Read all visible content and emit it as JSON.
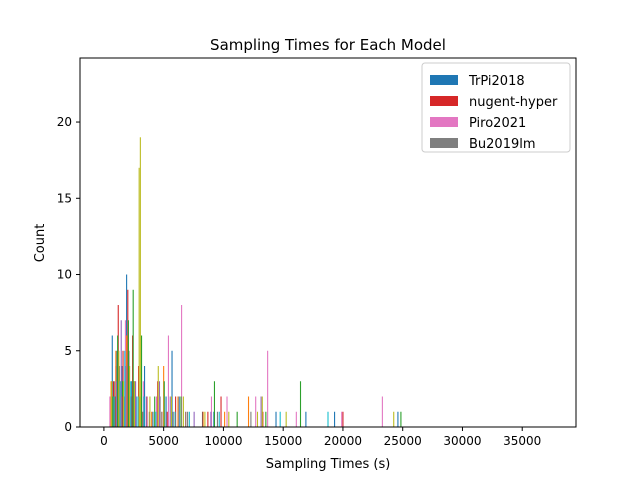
{
  "chart_data": {
    "type": "bar",
    "title": "Sampling Times for Each Model",
    "xlabel": "Sampling Times (s)",
    "ylabel": "Count",
    "xlim": [
      -2000,
      39500
    ],
    "ylim": [
      0,
      24.2
    ],
    "xticks": [
      0,
      5000,
      10000,
      15000,
      20000,
      25000,
      30000,
      35000
    ],
    "yticks": [
      0,
      5,
      10,
      15,
      20
    ],
    "grid": false,
    "legend_position": "top-right",
    "colors": {
      "TrPi2018": "#1f77b4",
      "nugent-hyper": "#d62728",
      "Piro2021": "#e377c2",
      "Bu2019lm": "#7f7f7f",
      "extra_orange": "#ff7f0e",
      "extra_green": "#2ca02c",
      "extra_purple": "#9467bd",
      "extra_olive": "#bcbd22",
      "extra_cyan": "#17becf",
      "extra_brown": "#8c564b"
    },
    "legend": [
      "TrPi2018",
      "nugent-hyper",
      "Piro2021",
      "Bu2019lm"
    ],
    "series": [
      {
        "name": "TrPi2018",
        "color": "#1f77b4",
        "x": [
          700,
          1100,
          1500,
          1900,
          2300,
          2700,
          3400,
          4100,
          5200,
          5700,
          6300,
          9200,
          14400,
          16900,
          19300,
          24600
        ],
        "y": [
          6,
          5,
          4,
          10,
          3,
          2,
          4,
          1,
          2,
          5,
          2,
          1,
          1,
          1,
          1,
          1
        ]
      },
      {
        "name": "nugent-hyper",
        "color": "#d62728",
        "x": [
          800,
          1200,
          1600,
          2000,
          2400,
          2900,
          3600,
          4500,
          5300,
          6000,
          8700,
          9800,
          13300,
          20000
        ],
        "y": [
          3,
          8,
          5,
          9,
          6,
          4,
          2,
          3,
          1,
          2,
          1,
          2,
          1,
          1
        ]
      },
      {
        "name": "Piro2021",
        "color": "#e377c2",
        "x": [
          500,
          1000,
          1400,
          1800,
          2200,
          2600,
          3300,
          4400,
          5400,
          6500,
          9000,
          10300,
          12700,
          13700,
          16100,
          19900,
          23300
        ],
        "y": [
          2,
          4,
          3,
          7,
          2,
          2,
          3,
          2,
          6,
          8,
          2,
          2,
          2,
          5,
          1,
          1,
          2
        ]
      },
      {
        "name": "Bu2019lm",
        "color": "#7f7f7f",
        "x": [
          900,
          1300,
          1700,
          2100,
          2500,
          3100,
          3800,
          4700,
          5800,
          7000,
          9500,
          12300
        ],
        "y": [
          3,
          4,
          2,
          5,
          3,
          2,
          1,
          2,
          1,
          1,
          1,
          1
        ]
      },
      {
        "color": "#ff7f0e",
        "x": [
          600,
          1000,
          1500,
          1900,
          2600,
          3000,
          4000,
          5000,
          6200,
          8300,
          10100,
          12100
        ],
        "y": [
          3,
          5,
          2,
          6,
          3,
          2,
          1,
          4,
          2,
          1,
          1,
          2
        ]
      },
      {
        "color": "#2ca02c",
        "x": [
          750,
          1150,
          1550,
          2050,
          2450,
          3150,
          4250,
          5050,
          6450,
          9250,
          11150,
          13550,
          16450,
          24850
        ],
        "y": [
          2,
          6,
          3,
          7,
          9,
          6,
          2,
          3,
          2,
          3,
          1,
          1,
          3,
          1
        ]
      },
      {
        "color": "#9467bd",
        "x": [
          1050,
          1450,
          1850,
          2650,
          3550,
          4650,
          5550,
          7550,
          8950,
          13150
        ],
        "y": [
          3,
          7,
          4,
          3,
          2,
          3,
          2,
          1,
          1,
          2
        ]
      },
      {
        "color": "#bcbd22",
        "x": [
          650,
          1250,
          1650,
          2150,
          2550,
          2950,
          3050,
          3850,
          4550,
          5650,
          6650,
          8450,
          10450,
          12850,
          13250,
          15250,
          24250
        ],
        "y": [
          3,
          5,
          3,
          4,
          3,
          17,
          19,
          2,
          4,
          2,
          2,
          1,
          1,
          1,
          2,
          1,
          1
        ]
      },
      {
        "color": "#17becf",
        "x": [
          850,
          1350,
          1750,
          2250,
          2850,
          3350,
          4350,
          5950,
          7150,
          9650,
          14750,
          18750
        ],
        "y": [
          2,
          3,
          5,
          3,
          2,
          2,
          1,
          1,
          1,
          1,
          1,
          1
        ]
      },
      {
        "color": "#8c564b",
        "x": [
          950,
          1550,
          2350,
          3250,
          4850,
          6850,
          8250
        ],
        "y": [
          2,
          2,
          2,
          1,
          1,
          1,
          1
        ]
      }
    ]
  }
}
